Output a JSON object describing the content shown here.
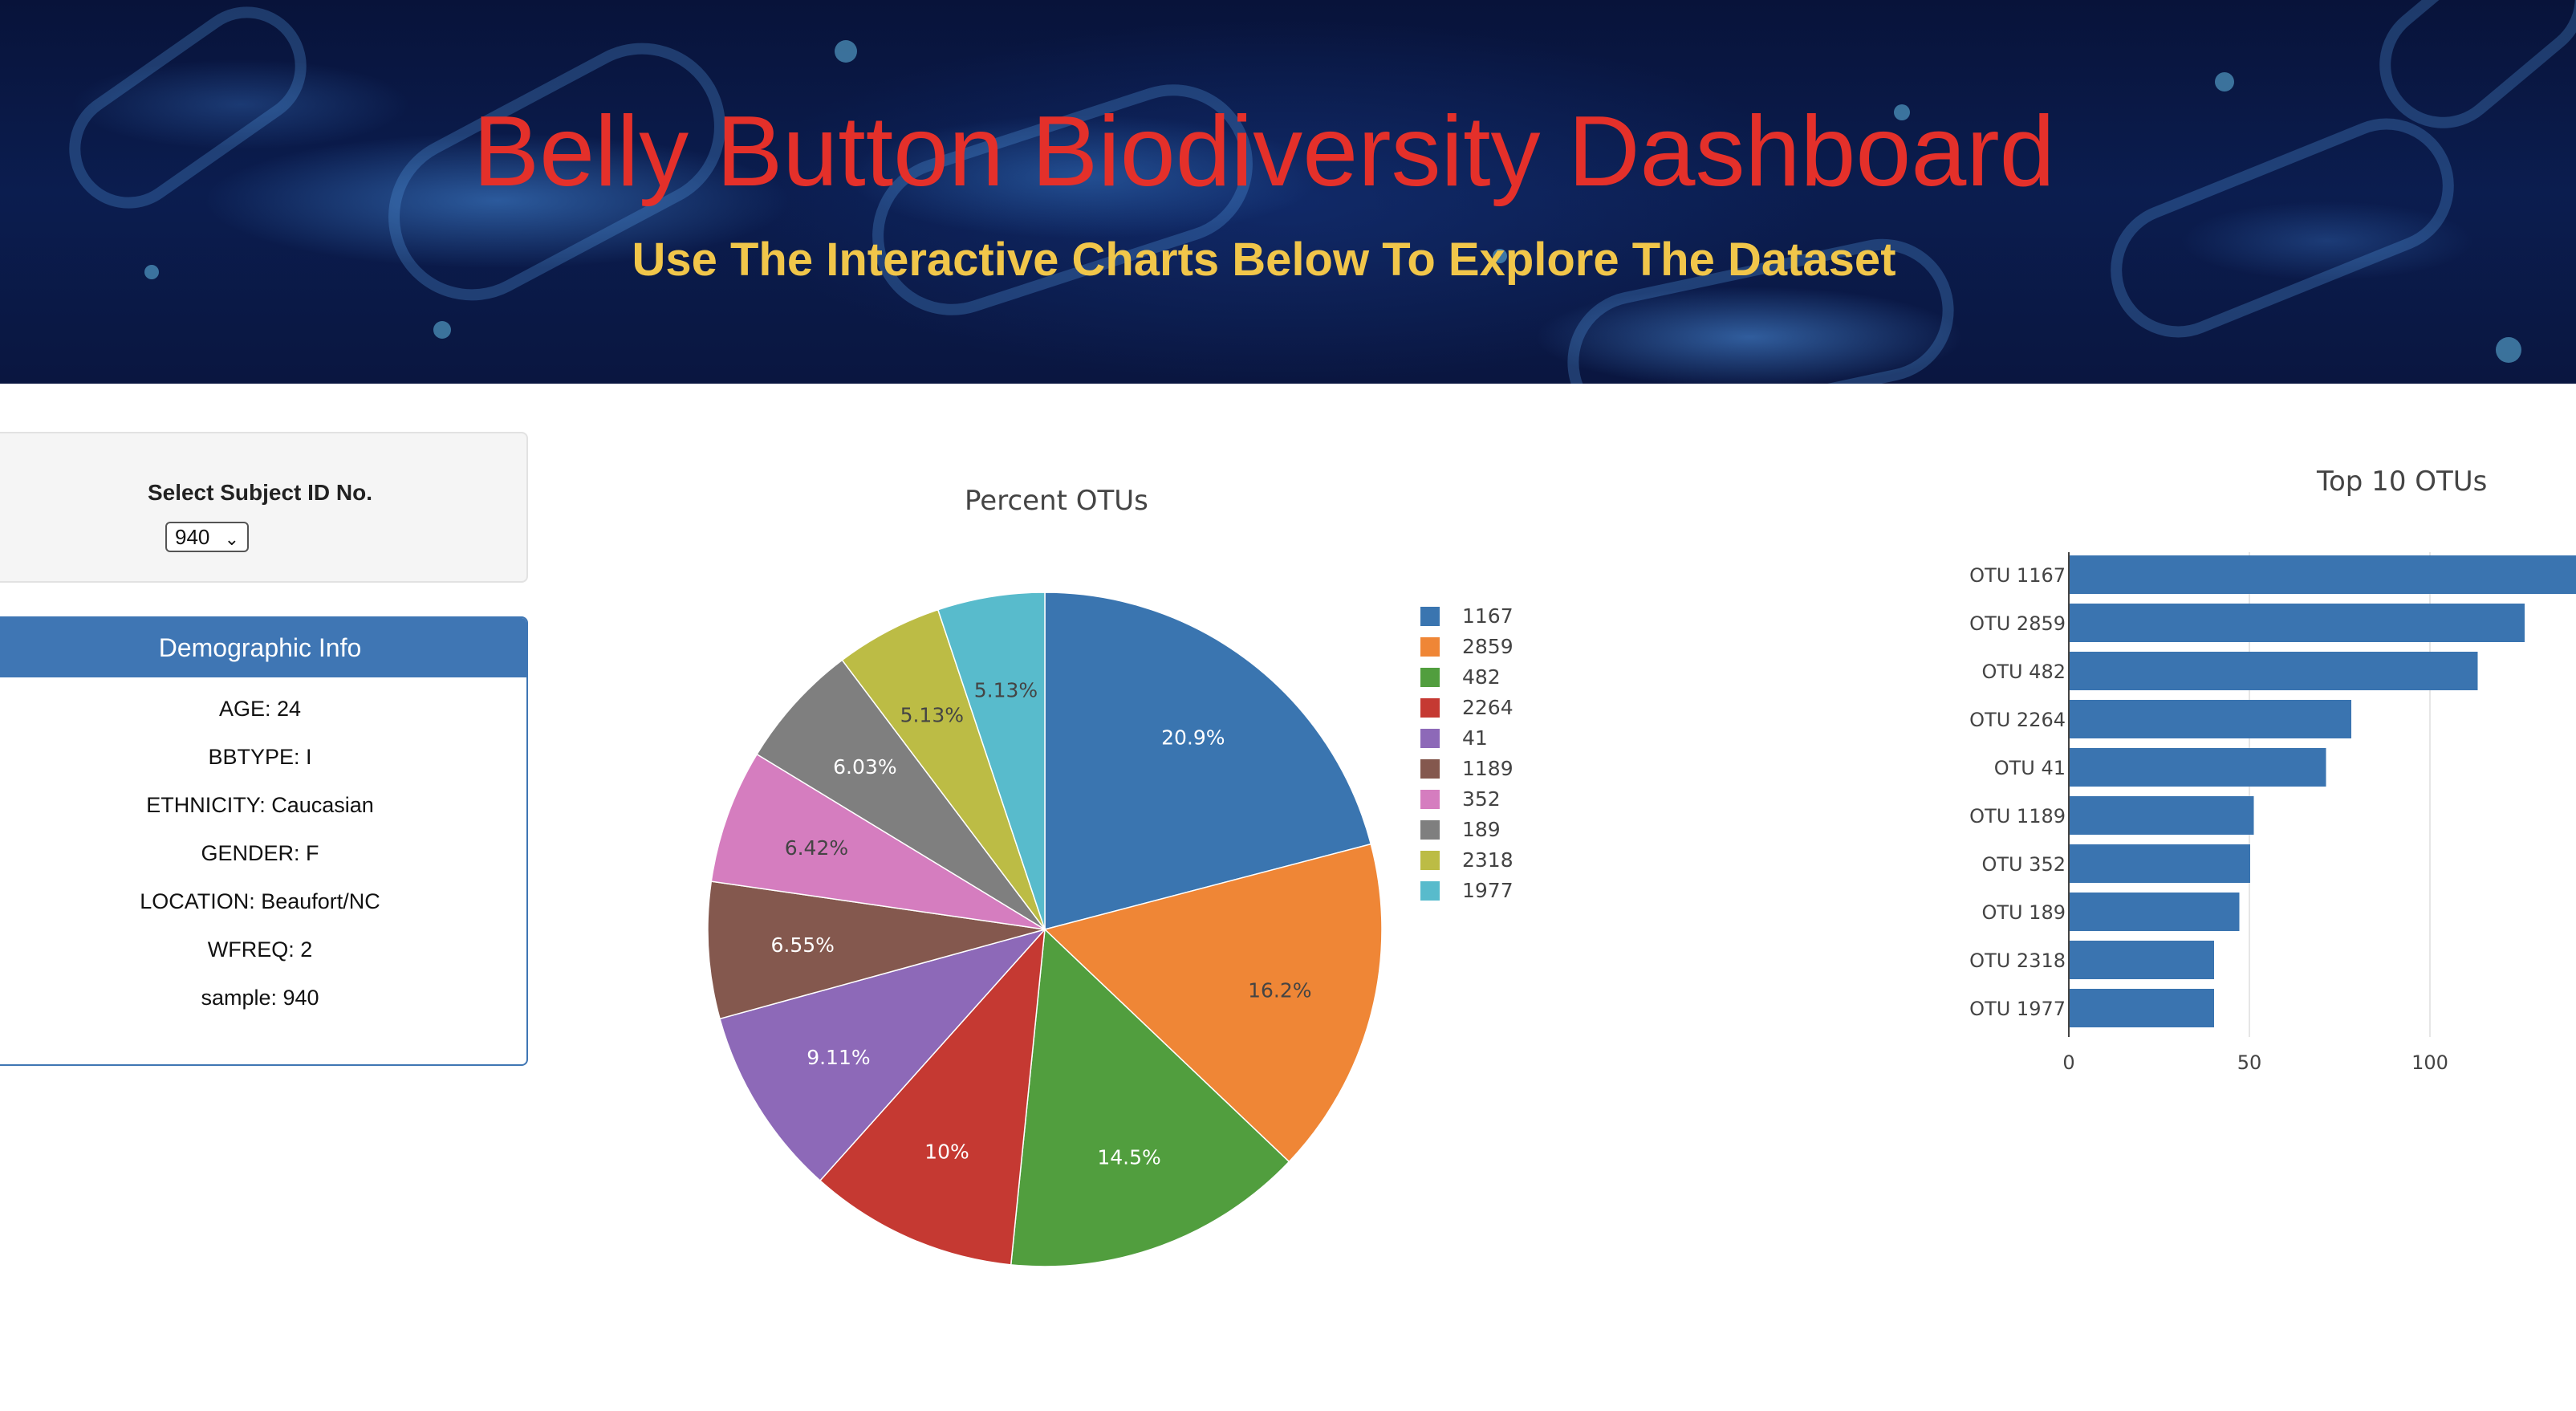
{
  "header": {
    "title": "Belly Button Biodiversity Dashboard",
    "subtitle": "Use The Interactive Charts Below To Explore The Dataset"
  },
  "selector": {
    "label": "Select Subject ID No.",
    "selected": "940"
  },
  "demographics": {
    "title": "Demographic Info",
    "items": [
      "AGE: 24",
      "BBTYPE: I",
      "ETHNICITY: Caucasian",
      "GENDER: F",
      "LOCATION: Beaufort/NC",
      "WFREQ: 2",
      "sample: 940"
    ]
  },
  "colors": {
    "header_title": "#e4302a",
    "header_subtitle": "#f1c64a",
    "panel_accent": "#3f76b4",
    "bar": "#3a74b0"
  },
  "chart_data": [
    {
      "type": "pie",
      "title": "Percent OTUs",
      "labels": [
        "1167",
        "2859",
        "482",
        "2264",
        "41",
        "1189",
        "352",
        "189",
        "2318",
        "1977"
      ],
      "values": [
        163,
        126,
        113,
        78,
        71,
        51,
        50,
        47,
        40,
        40
      ],
      "percent_labels": [
        "20.9%",
        "16.2%",
        "14.5%",
        "10%",
        "9.11%",
        "6.55%",
        "6.42%",
        "6.03%",
        "5.13%",
        "5.13%"
      ],
      "colors": [
        "#3a75b0",
        "#ef8636",
        "#519e3e",
        "#c53932",
        "#8d69b8",
        "#84584e",
        "#d57dbf",
        "#7f7f7f",
        "#bcbc45",
        "#58bbcc"
      ],
      "label_colors": [
        "#ffffff",
        "#444444",
        "#ffffff",
        "#ffffff",
        "#ffffff",
        "#ffffff",
        "#444444",
        "#ffffff",
        "#444444",
        "#444444"
      ],
      "legend": "right"
    },
    {
      "type": "bar",
      "orientation": "horizontal",
      "title": "Top 10 OTUs",
      "categories": [
        "OTU 1167",
        "OTU 2859",
        "OTU 482",
        "OTU 2264",
        "OTU 41",
        "OTU 1189",
        "OTU 352",
        "OTU 189",
        "OTU 2318",
        "OTU 1977"
      ],
      "values": [
        163,
        126,
        113,
        78,
        71,
        51,
        50,
        47,
        40,
        40
      ],
      "xticks": [
        "0",
        "50",
        "100"
      ],
      "xtick_values": [
        0,
        50,
        100
      ],
      "grid": true
    }
  ]
}
